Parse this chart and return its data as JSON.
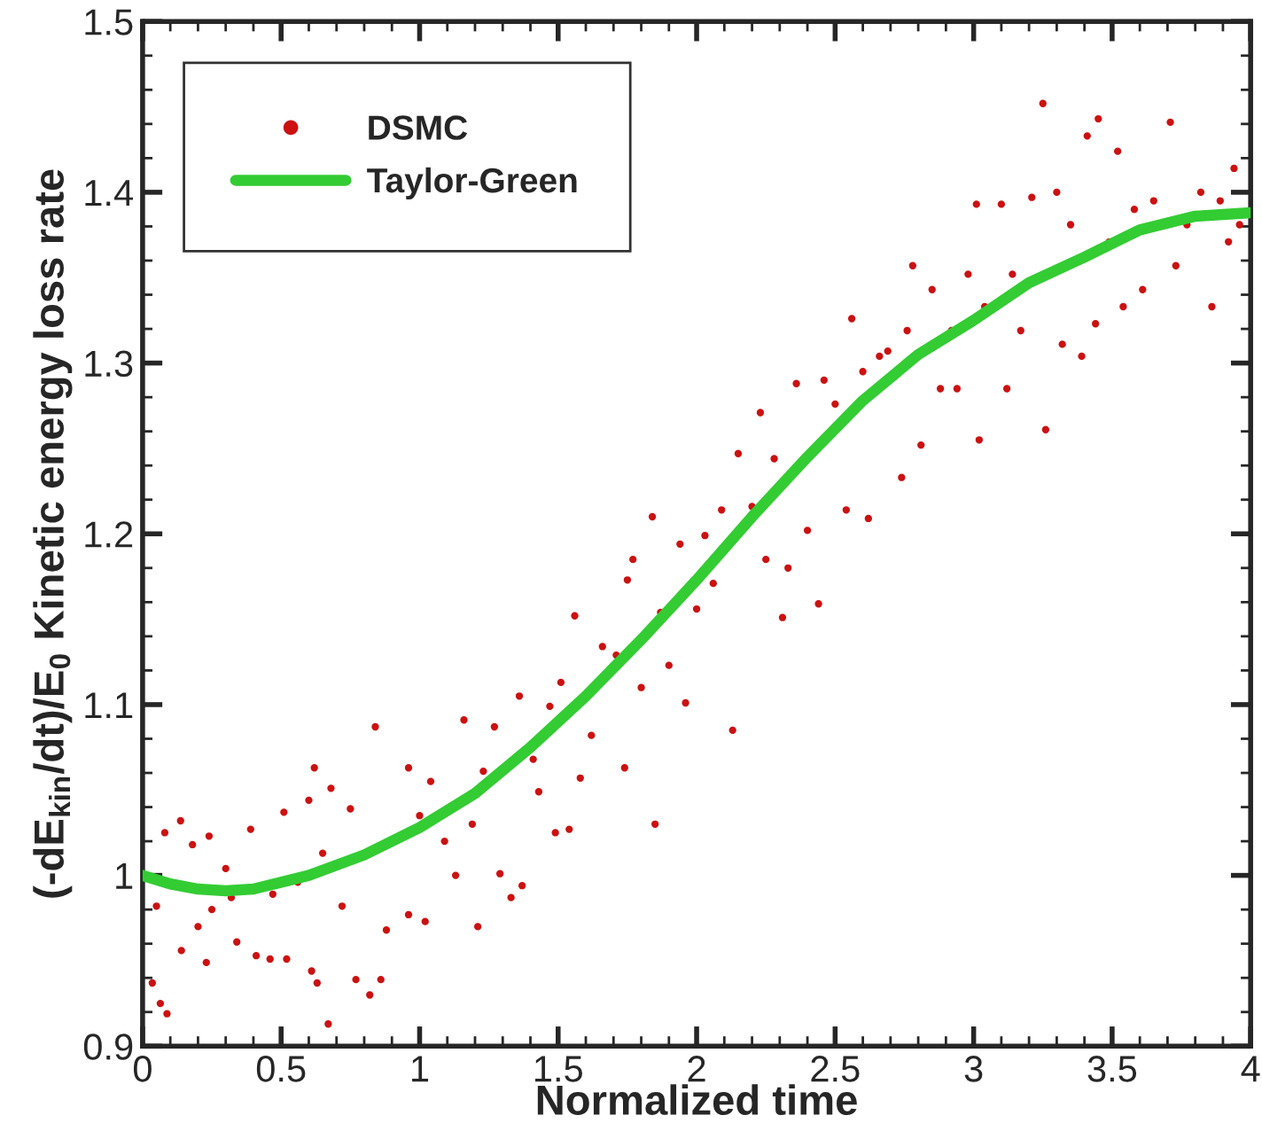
{
  "chart_data": {
    "type": "scatter",
    "xlabel": "Normalized time",
    "ylabel": "(-dE$_{kin}$/dt)/E$_{0}$ Kinetic energy loss rate",
    "xlim": [
      0,
      4
    ],
    "ylim": [
      0.9,
      1.5
    ],
    "xticks": [
      0,
      0.5,
      1,
      1.5,
      2,
      2.5,
      3,
      3.5,
      4
    ],
    "yticks": [
      0.9,
      1,
      1.1,
      1.2,
      1.3,
      1.4,
      1.5
    ],
    "legend": "top left",
    "grid": false,
    "series": [
      {
        "name": "DSMC",
        "marker": "circle",
        "color": "#cc1111",
        "x": [
          0.035,
          0.064,
          0.088,
          0.05,
          0.08,
          0.137,
          0.14,
          0.18,
          0.2,
          0.23,
          0.24,
          0.25,
          0.3,
          0.32,
          0.34,
          0.39,
          0.41,
          0.46,
          0.47,
          0.51,
          0.52,
          0.56,
          0.6,
          0.62,
          0.61,
          0.63,
          0.67,
          0.65,
          0.68,
          0.72,
          0.75,
          0.77,
          0.82,
          0.84,
          0.86,
          0.88,
          0.96,
          0.96,
          1.0,
          1.02,
          1.04,
          1.09,
          1.13,
          1.16,
          1.21,
          1.19,
          1.23,
          1.27,
          1.29,
          1.33,
          1.36,
          1.37,
          1.41,
          1.43,
          1.47,
          1.49,
          1.51,
          1.54,
          1.56,
          1.58,
          1.62,
          1.66,
          1.71,
          1.74,
          1.77,
          1.75,
          1.8,
          1.84,
          1.85,
          1.87,
          1.9,
          1.94,
          1.96,
          2.0,
          2.03,
          2.06,
          2.09,
          2.13,
          2.15,
          2.2,
          2.23,
          2.25,
          2.28,
          2.31,
          2.33,
          2.36,
          2.4,
          2.44,
          2.46,
          2.5,
          2.54,
          2.56,
          2.6,
          2.62,
          2.66,
          2.69,
          2.74,
          2.76,
          2.78,
          2.81,
          2.85,
          2.88,
          2.92,
          2.94,
          2.98,
          3.01,
          3.02,
          3.04,
          3.1,
          3.12,
          3.14,
          3.17,
          3.21,
          3.25,
          3.26,
          3.3,
          3.32,
          3.35,
          3.39,
          3.41,
          3.45,
          3.44,
          3.49,
          3.52,
          3.54,
          3.58,
          3.61,
          3.65,
          3.71,
          3.73,
          3.77,
          3.82,
          3.86,
          3.89,
          3.92,
          3.94,
          3.96
        ],
        "values": [
          0.937,
          0.925,
          0.919,
          0.982,
          1.025,
          1.032,
          0.956,
          1.018,
          0.97,
          0.949,
          1.023,
          0.98,
          1.004,
          0.987,
          0.961,
          1.027,
          0.953,
          0.951,
          0.989,
          1.037,
          0.951,
          0.996,
          1.044,
          1.063,
          0.944,
          0.937,
          0.913,
          1.013,
          1.051,
          0.982,
          1.039,
          0.939,
          0.93,
          1.087,
          0.939,
          0.968,
          1.063,
          0.977,
          1.035,
          0.973,
          1.055,
          1.02,
          1.0,
          1.091,
          0.97,
          1.03,
          1.061,
          1.087,
          1.001,
          0.987,
          1.105,
          0.994,
          1.068,
          1.049,
          1.099,
          1.025,
          1.113,
          1.027,
          1.152,
          1.057,
          1.082,
          1.134,
          1.129,
          1.063,
          1.185,
          1.173,
          1.11,
          1.21,
          1.03,
          1.154,
          1.123,
          1.194,
          1.101,
          1.156,
          1.199,
          1.171,
          1.214,
          1.085,
          1.247,
          1.216,
          1.271,
          1.185,
          1.244,
          1.151,
          1.18,
          1.288,
          1.202,
          1.159,
          1.29,
          1.276,
          1.214,
          1.326,
          1.295,
          1.209,
          1.304,
          1.307,
          1.233,
          1.319,
          1.357,
          1.252,
          1.343,
          1.285,
          1.319,
          1.285,
          1.352,
          1.393,
          1.255,
          1.333,
          1.393,
          1.285,
          1.352,
          1.319,
          1.397,
          1.452,
          1.261,
          1.4,
          1.311,
          1.381,
          1.304,
          1.433,
          1.443,
          1.323,
          1.371,
          1.424,
          1.333,
          1.39,
          1.343,
          1.395,
          1.441,
          1.357,
          1.381,
          1.4,
          1.333,
          1.395,
          1.371,
          1.414,
          1.381
        ]
      },
      {
        "name": "Taylor-Green",
        "type": "line",
        "line_style": "solid",
        "marker": "none",
        "color": "#33cc33",
        "x": [
          0,
          0.1,
          0.2,
          0.3,
          0.4,
          0.5,
          0.6,
          0.8,
          1.0,
          1.2,
          1.4,
          1.6,
          1.8,
          2.0,
          2.2,
          2.4,
          2.6,
          2.8,
          3.0,
          3.2,
          3.4,
          3.6,
          3.8,
          4.0
        ],
        "values": [
          1.0,
          0.995,
          0.992,
          0.991,
          0.992,
          0.996,
          1.0,
          1.012,
          1.028,
          1.048,
          1.075,
          1.105,
          1.138,
          1.173,
          1.21,
          1.245,
          1.278,
          1.305,
          1.325,
          1.347,
          1.362,
          1.378,
          1.386,
          1.388
        ]
      }
    ]
  }
}
